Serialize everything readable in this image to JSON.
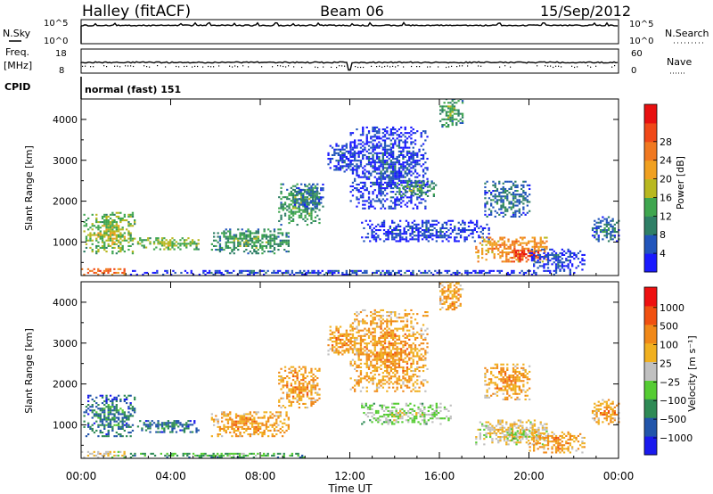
{
  "header": {
    "station": "Halley (fitACF)",
    "beam": "Beam 06",
    "date": "15/Sep/2012"
  },
  "top_panels": {
    "nsky_label": "N.Sky",
    "nsky_ticks": [
      "10^5",
      "10^0"
    ],
    "nsearch_label": "N.Search",
    "freq_label_1": "Freq.",
    "freq_label_2": "[MHz]",
    "freq_ticks": [
      "18",
      "8"
    ],
    "nave_label": "Nave",
    "nave_ticks": [
      "60",
      "0"
    ],
    "cpid_label": "CPID",
    "cpid_value": "normal (fast) 151"
  },
  "chart_data": [
    {
      "type": "heatmap",
      "name": "power",
      "ylabel": "Slant Range [km]",
      "xlabel": "Time UT",
      "x_ticks": [
        "00:00",
        "04:00",
        "08:00",
        "12:00",
        "16:00",
        "20:00",
        "00:00"
      ],
      "xlim_hours": [
        0,
        24
      ],
      "y_ticks": [
        1000,
        2000,
        3000,
        4000
      ],
      "ylim": [
        180,
        4500
      ],
      "colorbar": {
        "label": "Power [dB]",
        "ticks": [
          "4",
          "8",
          "12",
          "16",
          "20",
          "24",
          "28"
        ],
        "colors": [
          "#1a1aff",
          "#2255bb",
          "#2f7f66",
          "#3fa64f",
          "#b8b820",
          "#f0a020",
          "#f07820",
          "#f04818",
          "#e81010"
        ]
      },
      "echo_regions": [
        {
          "t0": 0.1,
          "t1": 2.4,
          "r0": 700,
          "r1": 1700,
          "level": 4
        },
        {
          "t0": 2.5,
          "t1": 5.2,
          "r0": 800,
          "r1": 1100,
          "level": 4
        },
        {
          "t0": 5.8,
          "t1": 9.3,
          "r0": 700,
          "r1": 1300,
          "level": 3
        },
        {
          "t0": 8.8,
          "t1": 10.6,
          "r0": 1400,
          "r1": 2400,
          "level": 3
        },
        {
          "t0": 9.5,
          "t1": 10.8,
          "r0": 1800,
          "r1": 2400,
          "level": 2
        },
        {
          "t0": 11.0,
          "t1": 12.2,
          "r0": 2700,
          "r1": 3400,
          "level": 1
        },
        {
          "t0": 12.0,
          "t1": 15.5,
          "r0": 1800,
          "r1": 3800,
          "level": 1
        },
        {
          "t0": 14.0,
          "t1": 15.8,
          "r0": 2100,
          "r1": 2500,
          "level": 3
        },
        {
          "t0": 16.0,
          "t1": 17.0,
          "r0": 3800,
          "r1": 4500,
          "level": 3
        },
        {
          "t0": 12.5,
          "t1": 18.2,
          "r0": 1000,
          "r1": 1500,
          "level": 1
        },
        {
          "t0": 17.6,
          "t1": 20.8,
          "r0": 500,
          "r1": 1100,
          "level": 6
        },
        {
          "t0": 19.2,
          "t1": 20.5,
          "r0": 500,
          "r1": 800,
          "level": 8
        },
        {
          "t0": 18.0,
          "t1": 20.0,
          "r0": 1600,
          "r1": 2500,
          "level": 2
        },
        {
          "t0": 20.0,
          "t1": 22.5,
          "r0": 300,
          "r1": 800,
          "level": 1
        },
        {
          "t0": 22.8,
          "t1": 24.0,
          "r0": 1000,
          "r1": 1600,
          "level": 2
        },
        {
          "t0": 0.0,
          "t1": 2.0,
          "r0": 180,
          "r1": 350,
          "level": 7
        },
        {
          "t0": 2.0,
          "t1": 22.0,
          "r0": 180,
          "r1": 300,
          "level": 1
        }
      ]
    },
    {
      "type": "heatmap",
      "name": "velocity",
      "ylabel": "Slant Range [km]",
      "xlabel": "Time UT",
      "x_ticks": [
        "00:00",
        "04:00",
        "08:00",
        "12:00",
        "16:00",
        "20:00",
        "00:00"
      ],
      "xlim_hours": [
        0,
        24
      ],
      "y_ticks": [
        1000,
        2000,
        3000,
        4000
      ],
      "ylim": [
        180,
        4500
      ],
      "colorbar": {
        "label": "Velocity [m s⁻¹]",
        "ticks": [
          "1000",
          "500",
          "100",
          "25",
          "−25",
          "−100",
          "−500",
          "−1000"
        ],
        "colors": [
          "#1a1aee",
          "#2255aa",
          "#2f8a55",
          "#55cc33",
          "#c0c0c0",
          "#f0b020",
          "#f08818",
          "#f05010",
          "#ee1010"
        ]
      },
      "echo_regions": [
        {
          "t0": 0.1,
          "t1": 2.4,
          "r0": 700,
          "r1": 1700,
          "level": 2
        },
        {
          "t0": 2.5,
          "t1": 5.2,
          "r0": 800,
          "r1": 1100,
          "level": 2
        },
        {
          "t0": 5.8,
          "t1": 9.3,
          "r0": 700,
          "r1": 1300,
          "level": 6
        },
        {
          "t0": 8.8,
          "t1": 10.6,
          "r0": 1400,
          "r1": 2400,
          "level": 6
        },
        {
          "t0": 11.0,
          "t1": 12.2,
          "r0": 2700,
          "r1": 3400,
          "level": 6
        },
        {
          "t0": 12.0,
          "t1": 15.5,
          "r0": 1800,
          "r1": 3800,
          "level": 6
        },
        {
          "t0": 16.0,
          "t1": 17.0,
          "r0": 3800,
          "r1": 4500,
          "level": 6
        },
        {
          "t0": 12.5,
          "t1": 16.5,
          "r0": 1000,
          "r1": 1500,
          "level": 4
        },
        {
          "t0": 17.6,
          "t1": 20.8,
          "r0": 500,
          "r1": 1100,
          "level": 5
        },
        {
          "t0": 19.0,
          "t1": 20.0,
          "r0": 600,
          "r1": 900,
          "level": 4
        },
        {
          "t0": 18.0,
          "t1": 20.0,
          "r0": 1600,
          "r1": 2500,
          "level": 6
        },
        {
          "t0": 20.0,
          "t1": 22.5,
          "r0": 300,
          "r1": 800,
          "level": 6
        },
        {
          "t0": 22.8,
          "t1": 24.0,
          "r0": 1000,
          "r1": 1600,
          "level": 6
        },
        {
          "t0": 0.0,
          "t1": 2.0,
          "r0": 180,
          "r1": 350,
          "level": 5
        },
        {
          "t0": 2.0,
          "t1": 10.0,
          "r0": 180,
          "r1": 300,
          "level": 3
        }
      ]
    }
  ],
  "axes": {
    "xlabel": "Time UT"
  }
}
